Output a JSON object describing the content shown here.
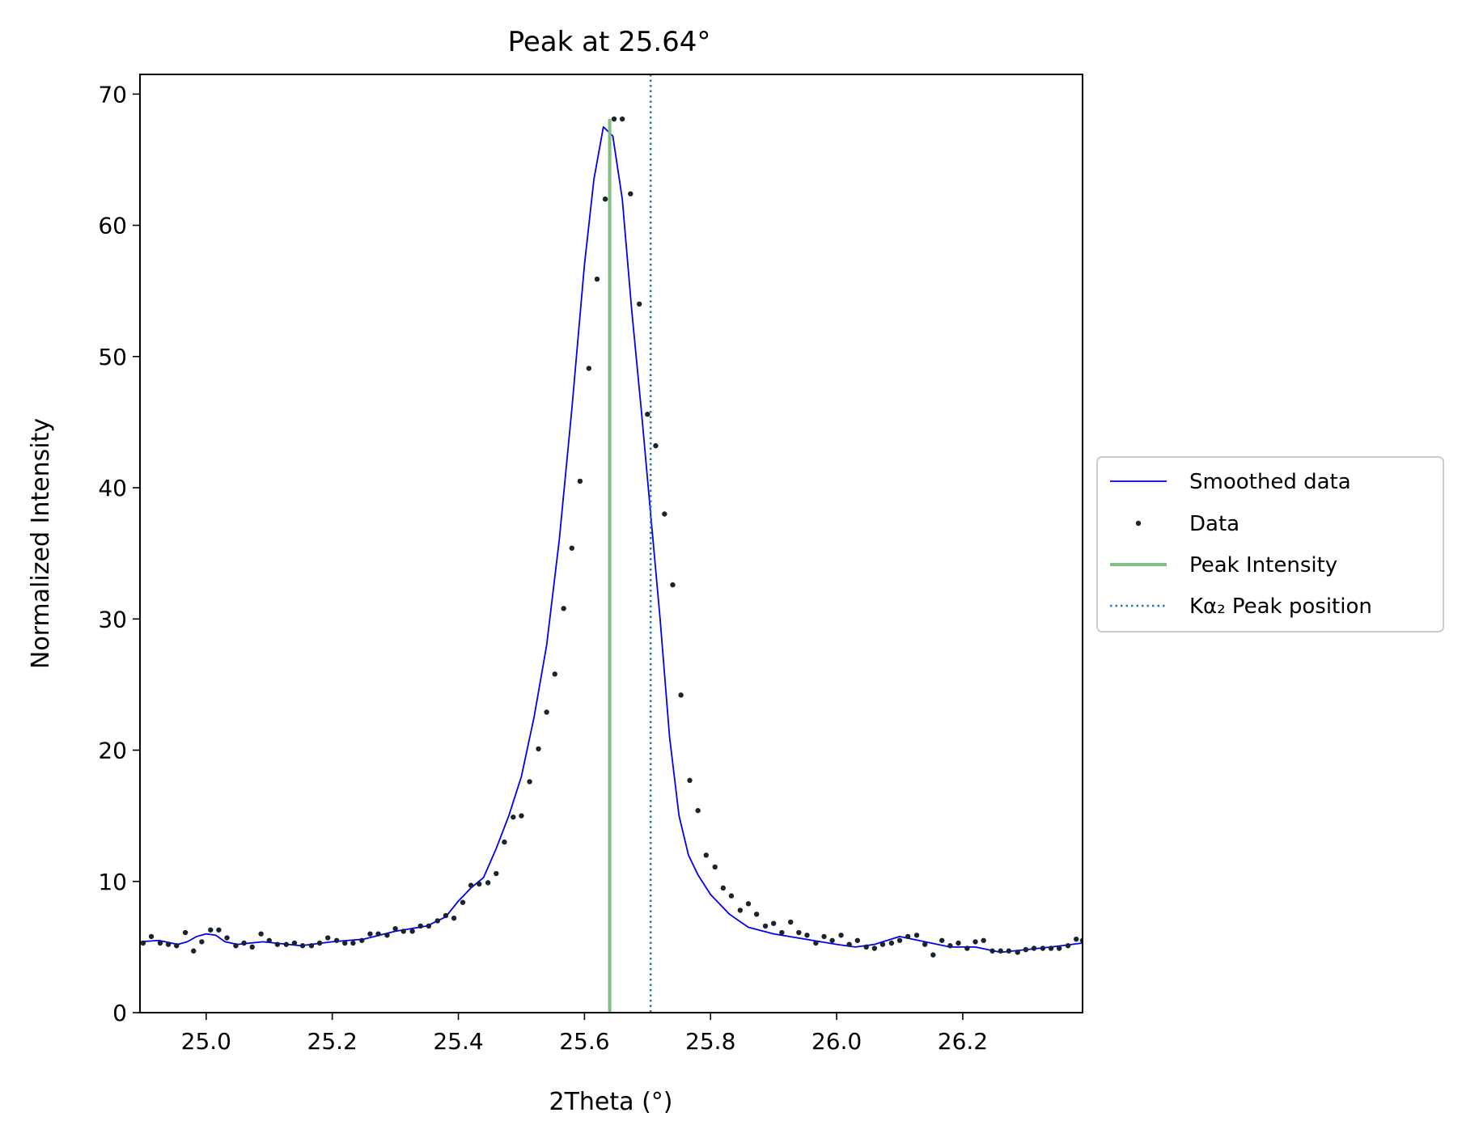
{
  "chart_data": {
    "type": "line",
    "title": "Peak at 25.64°",
    "xlabel": "2Theta (°)",
    "ylabel": "Normalized Intensity",
    "xlim": [
      24.895,
      26.39
    ],
    "ylim": [
      0,
      71.5
    ],
    "xticks": [
      25.0,
      25.2,
      25.4,
      25.6,
      25.8,
      26.0,
      26.2
    ],
    "xtick_labels": [
      "25.0",
      "25.2",
      "25.4",
      "25.6",
      "25.8",
      "26.0",
      "26.2"
    ],
    "yticks": [
      0,
      10,
      20,
      30,
      40,
      50,
      60,
      70
    ],
    "ytick_labels": [
      "0",
      "10",
      "20",
      "30",
      "40",
      "50",
      "60",
      "70"
    ],
    "grid": false,
    "legend_position": "outside-right",
    "colors": {
      "smoothed": "#0000ee",
      "data": "#1a2430",
      "peak_intensity": "#7fbf7f",
      "kalpha2": "#1f77b4"
    },
    "series": [
      {
        "name": "Smoothed data",
        "kind": "line",
        "x": [
          24.895,
          24.925,
          24.955,
          24.97,
          24.985,
          25.0,
          25.015,
          25.03,
          25.05,
          25.07,
          25.09,
          25.11,
          25.15,
          25.2,
          25.25,
          25.3,
          25.35,
          25.38,
          25.4,
          25.42,
          25.44,
          25.46,
          25.48,
          25.5,
          25.52,
          25.54,
          25.56,
          25.58,
          25.6,
          25.615,
          25.63,
          25.645,
          25.66,
          25.675,
          25.69,
          25.705,
          25.72,
          25.735,
          25.75,
          25.765,
          25.78,
          25.8,
          25.83,
          25.86,
          25.9,
          25.95,
          26.0,
          26.03,
          26.06,
          26.1,
          26.14,
          26.18,
          26.22,
          26.26,
          26.3,
          26.34,
          26.39
        ],
        "y": [
          5.4,
          5.5,
          5.2,
          5.4,
          5.8,
          6.0,
          5.9,
          5.4,
          5.2,
          5.3,
          5.4,
          5.3,
          5.1,
          5.4,
          5.6,
          6.2,
          6.6,
          7.3,
          8.5,
          9.5,
          10.3,
          12.5,
          15.0,
          18.0,
          22.5,
          28.0,
          36.0,
          46.0,
          57.0,
          63.5,
          67.5,
          66.8,
          62.0,
          53.5,
          46.0,
          38.0,
          30.0,
          21.0,
          15.0,
          12.0,
          10.5,
          9.0,
          7.5,
          6.5,
          6.0,
          5.6,
          5.2,
          5.0,
          5.2,
          5.8,
          5.4,
          5.0,
          5.0,
          4.6,
          4.8,
          5.0,
          5.3
        ]
      },
      {
        "name": "Data",
        "kind": "scatter",
        "x": [
          24.9,
          24.913,
          24.927,
          24.94,
          24.953,
          24.967,
          24.98,
          24.993,
          25.007,
          25.02,
          25.033,
          25.047,
          25.06,
          25.073,
          25.087,
          25.1,
          25.113,
          25.127,
          25.14,
          25.153,
          25.167,
          25.18,
          25.193,
          25.207,
          25.22,
          25.233,
          25.247,
          25.26,
          25.273,
          25.287,
          25.3,
          25.313,
          25.327,
          25.34,
          25.353,
          25.367,
          25.38,
          25.393,
          25.407,
          25.42,
          25.433,
          25.447,
          25.46,
          25.473,
          25.487,
          25.5,
          25.513,
          25.527,
          25.54,
          25.553,
          25.567,
          25.58,
          25.593,
          25.607,
          25.62,
          25.633,
          25.647,
          25.66,
          25.673,
          25.687,
          25.7,
          25.713,
          25.727,
          25.74,
          25.753,
          25.767,
          25.78,
          25.793,
          25.807,
          25.82,
          25.833,
          25.847,
          25.86,
          25.873,
          25.887,
          25.9,
          25.913,
          25.927,
          25.94,
          25.953,
          25.967,
          25.98,
          25.993,
          26.007,
          26.02,
          26.033,
          26.047,
          26.06,
          26.073,
          26.087,
          26.1,
          26.113,
          26.127,
          26.14,
          26.153,
          26.167,
          26.18,
          26.193,
          26.207,
          26.22,
          26.233,
          26.247,
          26.26,
          26.273,
          26.287,
          26.3,
          26.313,
          26.327,
          26.34,
          26.353,
          26.367,
          26.38,
          26.39
        ],
        "y": [
          5.3,
          5.8,
          5.3,
          5.2,
          5.1,
          6.1,
          4.7,
          5.4,
          6.3,
          6.3,
          5.7,
          5.1,
          5.3,
          5.0,
          6.0,
          5.5,
          5.2,
          5.2,
          5.3,
          5.1,
          5.1,
          5.3,
          5.7,
          5.5,
          5.3,
          5.3,
          5.5,
          6.0,
          6.0,
          5.9,
          6.4,
          6.2,
          6.2,
          6.6,
          6.6,
          7.0,
          7.4,
          7.2,
          8.4,
          9.7,
          9.8,
          9.9,
          10.6,
          13.0,
          14.9,
          15.0,
          17.6,
          20.1,
          22.9,
          25.8,
          30.8,
          35.4,
          40.5,
          49.1,
          55.9,
          62.0,
          68.1,
          68.1,
          62.4,
          54.0,
          45.6,
          43.2,
          38.0,
          32.6,
          24.2,
          17.7,
          15.4,
          12.0,
          11.1,
          9.5,
          8.9,
          7.8,
          8.3,
          7.5,
          6.6,
          6.8,
          6.1,
          6.9,
          6.1,
          5.9,
          5.3,
          5.8,
          5.5,
          5.9,
          5.2,
          5.5,
          5.0,
          4.9,
          5.2,
          5.3,
          5.5,
          5.8,
          5.9,
          5.2,
          4.4,
          5.5,
          5.1,
          5.3,
          4.9,
          5.4,
          5.5,
          4.7,
          4.7,
          4.7,
          4.6,
          4.8,
          4.9,
          4.9,
          4.9,
          4.9,
          5.1,
          5.6,
          5.5
        ]
      },
      {
        "name": "Peak Intensity",
        "kind": "vline-segment",
        "x": 25.64,
        "y_range": [
          0,
          68.1
        ]
      },
      {
        "name": "Kα₂ Peak position",
        "kind": "vline",
        "x": 25.705
      }
    ]
  }
}
